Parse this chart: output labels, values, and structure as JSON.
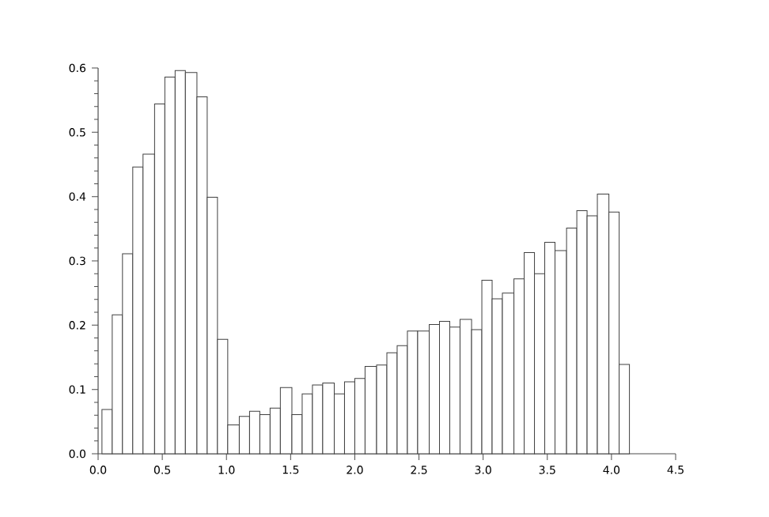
{
  "chart_data": {
    "type": "histogram",
    "bins": [
      0.03,
      0.11,
      0.19,
      0.27,
      0.35,
      0.44,
      0.52,
      0.6,
      0.68,
      0.77,
      0.85,
      0.93,
      1.01,
      1.1,
      1.18,
      1.26,
      1.34,
      1.42,
      1.51,
      1.59,
      1.67,
      1.75,
      1.84,
      1.92,
      2.0,
      2.08,
      2.17,
      2.25,
      2.33,
      2.41,
      2.49,
      2.58,
      2.66,
      2.74,
      2.82,
      2.91,
      2.99,
      3.07,
      3.15,
      3.24,
      3.32,
      3.4,
      3.48,
      3.56,
      3.65,
      3.73,
      3.81,
      3.89,
      3.98,
      4.06,
      4.14
    ],
    "values": [
      0.069,
      0.216,
      0.311,
      0.446,
      0.466,
      0.544,
      0.586,
      0.596,
      0.593,
      0.555,
      0.399,
      0.178,
      0.045,
      0.058,
      0.066,
      0.061,
      0.071,
      0.103,
      0.061,
      0.093,
      0.107,
      0.11,
      0.093,
      0.112,
      0.117,
      0.136,
      0.138,
      0.157,
      0.168,
      0.191,
      0.191,
      0.201,
      0.206,
      0.197,
      0.209,
      0.193,
      0.27,
      0.241,
      0.25,
      0.272,
      0.313,
      0.28,
      0.329,
      0.316,
      0.351,
      0.378,
      0.37,
      0.404,
      0.376,
      0.139
    ],
    "color": "#ffffff",
    "xlim": [
      0,
      4.5
    ],
    "ylim": [
      0,
      0.6
    ],
    "xticks": [
      {
        "value": 0,
        "label": "0.0"
      },
      0.5,
      {
        "value": 1,
        "label": "1.0"
      },
      1.5,
      {
        "value": 2,
        "label": "2.0"
      },
      2.5,
      {
        "value": 3,
        "label": "3.0"
      },
      3.5,
      {
        "value": 4,
        "label": "4.0"
      },
      4.5
    ],
    "yticks": [
      {
        "value": 0,
        "label": "0.0"
      },
      0.1,
      0.2,
      0.3,
      0.4,
      0.5,
      0.6
    ]
  }
}
